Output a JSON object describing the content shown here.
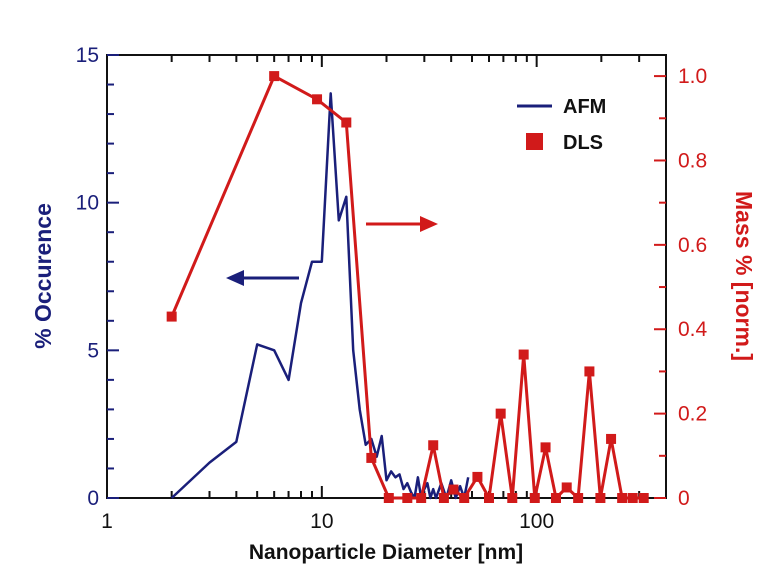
{
  "chart_data": {
    "type": "line",
    "title": "",
    "xlabel": "Nanoparticle Diameter [nm]",
    "ylabel_left": "% Occurence",
    "ylabel_right": "Mass % [norm.]",
    "xscale": "log",
    "xlim": [
      1,
      400
    ],
    "ylim_left": [
      0,
      15
    ],
    "ylim_right": [
      0,
      1.05
    ],
    "x_ticks": [
      1,
      10,
      100
    ],
    "x_tick_labels": [
      "1",
      "10",
      "100"
    ],
    "y_left_ticks": [
      0,
      5,
      10,
      15
    ],
    "y_left_tick_labels": [
      "0",
      "5",
      "10",
      "15"
    ],
    "y_right_ticks": [
      0,
      0.2,
      0.4,
      0.6,
      0.8,
      1.0
    ],
    "y_right_tick_labels": [
      "0",
      "0.2",
      "0.4",
      "0.6",
      "0.8",
      "1.0"
    ],
    "grid": false,
    "legend_position": "top-right",
    "series": [
      {
        "name": "AFM",
        "axis": "left",
        "color": "#1a1f7a",
        "marker": "none",
        "x": [
          2.0,
          3.0,
          4.0,
          5.0,
          6.0,
          7.0,
          8.0,
          9.0,
          10.0,
          11.0,
          12.0,
          13.0,
          14.0,
          15.0,
          16.0,
          17.0,
          18.0,
          19.0,
          20.0,
          21.0,
          22.0,
          23.0,
          24.0,
          25.0,
          26.0,
          27.0,
          28.0,
          29.0,
          30.0,
          31.0,
          32.0,
          33.0,
          34.0,
          36.0,
          38.0,
          40.0,
          42.0,
          44.0,
          46.0,
          48.0
        ],
        "y": [
          0,
          1.2,
          1.9,
          5.2,
          5.0,
          4.0,
          6.6,
          8.0,
          8.0,
          13.7,
          9.4,
          10.2,
          5.0,
          3.0,
          1.8,
          2.0,
          1.4,
          2.1,
          0.6,
          0.9,
          0.7,
          0.8,
          0.3,
          0.5,
          0.2,
          0.0,
          0.7,
          0.0,
          0.3,
          0.5,
          0.0,
          0.3,
          0.0,
          0.5,
          0.0,
          0.6,
          0.0,
          0.4,
          0.0,
          0.7
        ]
      },
      {
        "name": "DLS",
        "axis": "right",
        "color": "#d11a1a",
        "marker": "square",
        "x": [
          2.0,
          6.0,
          9.5,
          13.0,
          17.0,
          20.5,
          25.0,
          29.0,
          33.0,
          37.0,
          41.0,
          46.0,
          53.0,
          60.0,
          68.0,
          77.0,
          87.0,
          98.0,
          110.0,
          123.0,
          138.0,
          156.0,
          176.0,
          198.0,
          222.0,
          250.0,
          280.0,
          315.0
        ],
        "y": [
          0.43,
          1.0,
          0.945,
          0.89,
          0.095,
          0.0,
          0.0,
          0.0,
          0.125,
          0.0,
          0.02,
          0.0,
          0.05,
          0.0,
          0.2,
          0.0,
          0.34,
          0.0,
          0.12,
          0.0,
          0.025,
          0.0,
          0.3,
          0.0,
          0.14,
          0.0,
          0.0,
          0.0
        ]
      }
    ],
    "annotations": [
      {
        "type": "arrow",
        "direction": "left",
        "color": "#1a1f7a",
        "meaning": "AFM curve uses left axis"
      },
      {
        "type": "arrow",
        "direction": "right",
        "color": "#d11a1a",
        "meaning": "DLS curve uses right axis"
      }
    ]
  }
}
